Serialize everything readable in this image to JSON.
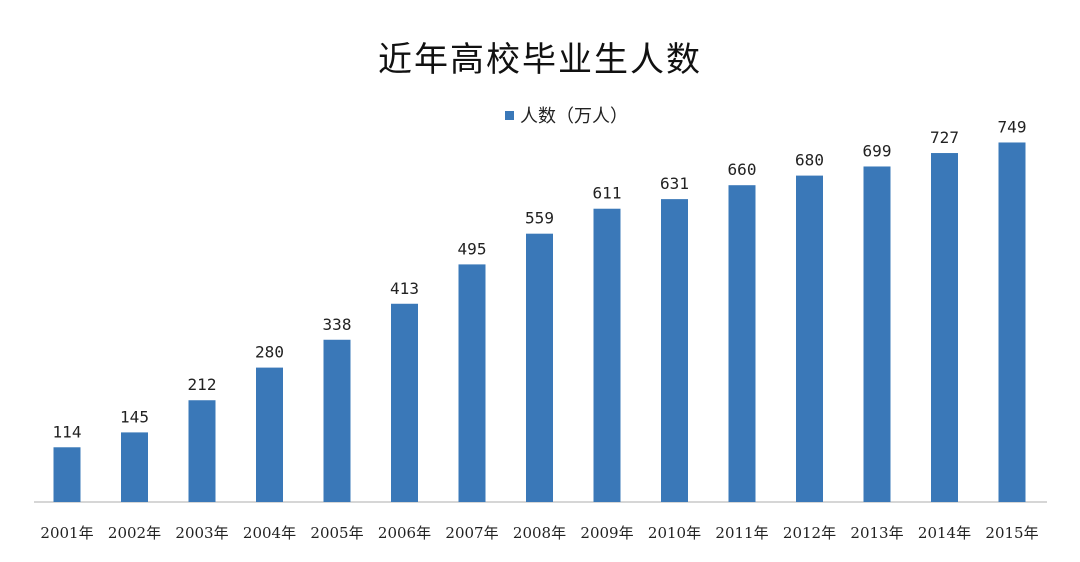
{
  "chart_data": {
    "type": "bar",
    "title": "近年高校毕业生人数",
    "legend_position": "top-center",
    "grid": false,
    "categories": [
      "2001年",
      "2002年",
      "2003年",
      "2004年",
      "2005年",
      "2006年",
      "2007年",
      "2008年",
      "2009年",
      "2010年",
      "2011年",
      "2012年",
      "2013年",
      "2014年",
      "2015年"
    ],
    "series": [
      {
        "name": "人数（万人）",
        "color": "#3a78b8",
        "values": [
          114,
          145,
          212,
          280,
          338,
          413,
          495,
          559,
          611,
          631,
          660,
          680,
          699,
          727,
          749
        ]
      }
    ],
    "ylim": [
      0,
      800
    ]
  }
}
